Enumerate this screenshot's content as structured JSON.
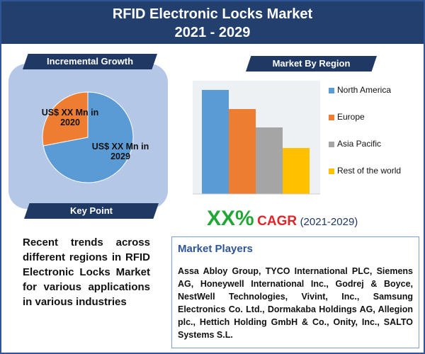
{
  "header": {
    "title": "RFID Electronic Locks Market",
    "subtitle": "2021 - 2029"
  },
  "chart_data": [
    {
      "type": "pie",
      "title": "Incremental Growth",
      "categories": [
        "US$ XX Mn in 2020",
        "US$ XX Mn in 2029"
      ],
      "values": [
        28,
        72
      ],
      "colors": [
        "#ee7d31",
        "#5b9bd5"
      ]
    },
    {
      "type": "bar",
      "title": "Market By Region",
      "categories": [
        "North America",
        "Europe",
        "Asia Pacific",
        "Rest of the world"
      ],
      "values": [
        147,
        120,
        94,
        65
      ],
      "colors": [
        "#5b9bd5",
        "#ed7d31",
        "#a5a5a5",
        "#ffc000"
      ]
    }
  ],
  "cagr": {
    "value": "XX%",
    "label": "CAGR",
    "period": "(2021-2029)"
  },
  "key_point": {
    "title": "Key Point",
    "text": "Recent trends across different regions in RFID Electronic Locks Market for various applications in various industries"
  },
  "market_players": {
    "title": "Market Players",
    "text": "Assa Abloy Group, TYCO International PLC, Siemens AG, Honeywell International Inc., Godrej & Boyce, NestWell Technologies, Vivint, Inc., Samsung Electronics Co. Ltd., Dormakaba Holdings AG, Allegion plc., Hettich Holding GmbH & Co., Onity, Inc., SALTO Systems S.L."
  }
}
